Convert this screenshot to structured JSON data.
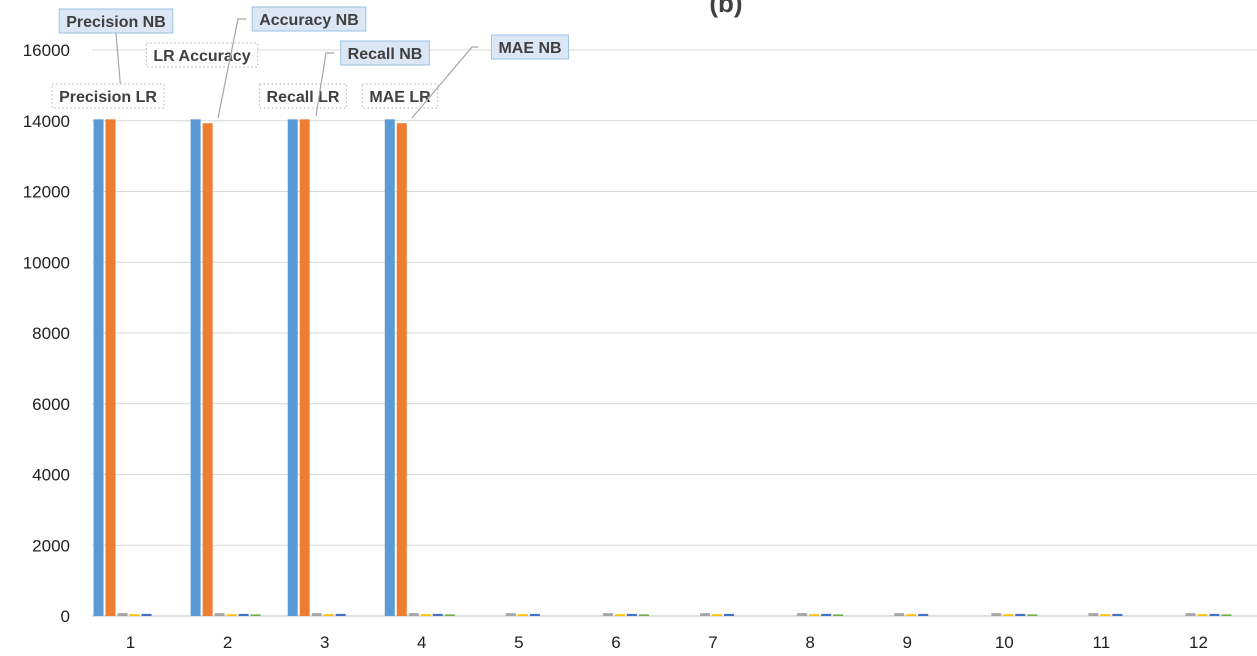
{
  "chart_data": {
    "type": "bar",
    "title": "(b)",
    "xlabel": "",
    "ylabel": "",
    "ylim": [
      0,
      16000
    ],
    "yticks": [
      0,
      2000,
      4000,
      6000,
      8000,
      10000,
      12000,
      14000,
      16000
    ],
    "grid": true,
    "categories": [
      "1",
      "2",
      "3",
      "4",
      "5",
      "6",
      "7",
      "8",
      "9",
      "10",
      "11",
      "12"
    ],
    "series": [
      {
        "color": "#5b9bd5",
        "values": [
          14040,
          14040,
          14040,
          14040,
          0,
          0,
          0,
          0,
          0,
          0,
          0,
          0
        ]
      },
      {
        "color": "#ed7d31",
        "values": [
          14040,
          13930,
          14040,
          13930,
          0,
          0,
          0,
          0,
          0,
          0,
          0,
          0
        ]
      },
      {
        "color": "#a5a5a5",
        "values": [
          80,
          80,
          80,
          80,
          80,
          80,
          80,
          80,
          80,
          80,
          80,
          80
        ]
      },
      {
        "color": "#ffc000",
        "values": [
          50,
          50,
          50,
          50,
          50,
          50,
          50,
          50,
          50,
          50,
          50,
          50
        ]
      },
      {
        "color": "#4472c4",
        "values": [
          60,
          60,
          60,
          60,
          60,
          60,
          60,
          60,
          60,
          60,
          60,
          60
        ]
      },
      {
        "color": "#70ad47",
        "values": [
          0,
          45,
          0,
          45,
          0,
          45,
          0,
          45,
          0,
          45,
          0,
          45
        ]
      }
    ],
    "annotations": [
      {
        "text": "Precision NB",
        "style": "box",
        "category": 0,
        "series": 1
      },
      {
        "text": "Precision LR",
        "style": "dotted",
        "category": 0,
        "series": 0
      },
      {
        "text": "LR Accuracy",
        "style": "dotted",
        "category": 1,
        "series": 0
      },
      {
        "text": "Accuracy NB",
        "style": "box",
        "category": 1,
        "series": 1
      },
      {
        "text": "Recall LR",
        "style": "dotted",
        "category": 2,
        "series": 0
      },
      {
        "text": "Recall NB",
        "style": "box",
        "category": 2,
        "series": 1
      },
      {
        "text": "MAE LR",
        "style": "dotted",
        "category": 3,
        "series": 0
      },
      {
        "text": "MAE NB",
        "style": "box",
        "category": 3,
        "series": 1
      }
    ]
  }
}
